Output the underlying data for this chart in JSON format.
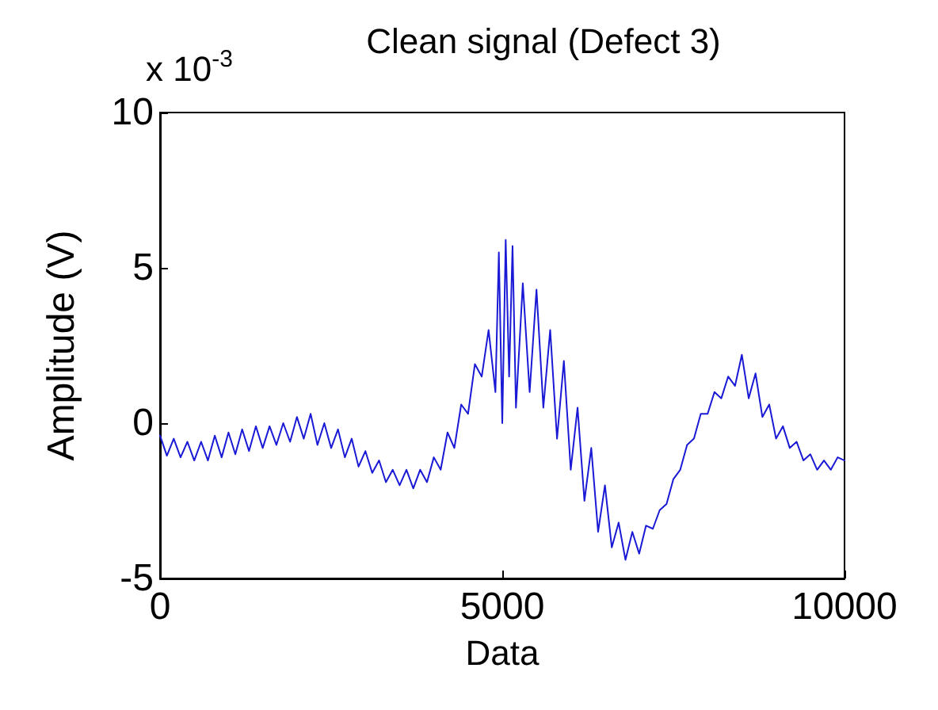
{
  "chart_data": {
    "type": "line",
    "title": "Clean signal (Defect 3)",
    "xlabel": "Data",
    "ylabel": "Amplitude (V)",
    "annotations": [
      "x 10$^{-3}$"
    ],
    "xlim": [
      0,
      10000
    ],
    "xticks": [
      0,
      5000,
      10000
    ],
    "ylim": [
      -5,
      10
    ],
    "yticks": [
      -5,
      0,
      5,
      10
    ],
    "marker": "none",
    "line_style": "solid",
    "series": [
      {
        "color": "#1a1ad6",
        "x": [
          0,
          100,
          200,
          300,
          400,
          500,
          600,
          700,
          800,
          900,
          1000,
          1100,
          1200,
          1300,
          1400,
          1500,
          1600,
          1700,
          1800,
          1900,
          2000,
          2100,
          2200,
          2300,
          2400,
          2500,
          2600,
          2700,
          2800,
          2900,
          3000,
          3100,
          3200,
          3300,
          3400,
          3500,
          3600,
          3700,
          3800,
          3900,
          4000,
          4100,
          4200,
          4300,
          4400,
          4500,
          4600,
          4700,
          4800,
          4900,
          4950,
          5000,
          5050,
          5100,
          5150,
          5200,
          5300,
          5400,
          5500,
          5600,
          5700,
          5800,
          5900,
          6000,
          6100,
          6200,
          6300,
          6400,
          6500,
          6600,
          6700,
          6800,
          6900,
          7000,
          7100,
          7200,
          7300,
          7400,
          7500,
          7600,
          7700,
          7800,
          7900,
          8000,
          8100,
          8200,
          8300,
          8400,
          8500,
          8600,
          8700,
          8800,
          8900,
          9000,
          9100,
          9200,
          9300,
          9400,
          9500,
          9600,
          9700,
          9800,
          9900,
          10000
        ],
        "values": [
          -0.4,
          -1.05,
          -0.5,
          -1.1,
          -0.6,
          -1.2,
          -0.6,
          -1.2,
          -0.4,
          -1.1,
          -0.3,
          -1.0,
          -0.2,
          -0.9,
          -0.1,
          -0.8,
          -0.1,
          -0.7,
          0.0,
          -0.6,
          0.2,
          -0.5,
          0.3,
          -0.7,
          0.0,
          -0.8,
          -0.2,
          -1.1,
          -0.5,
          -1.4,
          -0.9,
          -1.6,
          -1.2,
          -1.9,
          -1.5,
          -2.0,
          -1.5,
          -2.1,
          -1.5,
          -1.9,
          -1.1,
          -1.5,
          -0.3,
          -0.8,
          0.6,
          0.3,
          1.9,
          1.5,
          3.0,
          1.0,
          5.5,
          0.0,
          5.9,
          1.5,
          5.7,
          0.5,
          4.5,
          1.0,
          4.3,
          0.5,
          3.0,
          -0.5,
          2.0,
          -1.5,
          0.5,
          -2.5,
          -0.8,
          -3.5,
          -2.0,
          -4.0,
          -3.2,
          -4.4,
          -3.5,
          -4.2,
          -3.3,
          -3.4,
          -2.8,
          -2.6,
          -1.8,
          -1.5,
          -0.7,
          -0.5,
          0.3,
          0.3,
          1.0,
          0.8,
          1.5,
          1.2,
          2.2,
          0.8,
          1.6,
          0.2,
          0.6,
          -0.5,
          -0.1,
          -0.8,
          -0.6,
          -1.2,
          -1.0,
          -1.5,
          -1.2,
          -1.5,
          -1.1,
          -1.2
        ]
      }
    ]
  }
}
